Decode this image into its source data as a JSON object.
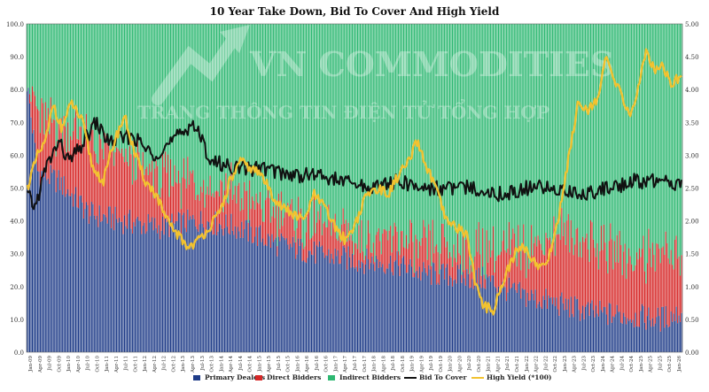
{
  "chart_data": {
    "type": "bar",
    "stacked": true,
    "title": "10 Year Take Down, Bid To Cover And High Yield",
    "left_axis": {
      "ylim": [
        0,
        100
      ],
      "ticks": [
        "0.0",
        "10.0",
        "20.0",
        "30.0",
        "40.0",
        "50.0",
        "60.0",
        "70.0",
        "80.0",
        "90.0",
        "100.0"
      ]
    },
    "right_axis": {
      "ylim": [
        0,
        5
      ],
      "ticks": [
        "0.00",
        "0.50",
        "1.00",
        "1.50",
        "2.00",
        "2.50",
        "3.00",
        "3.50",
        "4.00",
        "4.50",
        "5.00"
      ]
    },
    "x_tick_labels": [
      "Jan-09",
      "Apr-09",
      "Jul-09",
      "Oct-09",
      "Jan-10",
      "Apr-10",
      "Jul-10",
      "Oct-10",
      "Jan-11",
      "Apr-11",
      "Jul-11",
      "Oct-11",
      "Jan-12",
      "Apr-12",
      "Jul-12",
      "Oct-12",
      "Jan-13",
      "Apr-13",
      "Jul-13",
      "Oct-13",
      "Jan-14",
      "Apr-14",
      "Jul-14",
      "Oct-14",
      "Jan-15",
      "Apr-15",
      "Jul-15",
      "Oct-15",
      "Jan-16",
      "Apr-16",
      "Jul-16",
      "Oct-16",
      "Jan-17",
      "Apr-17",
      "Jul-17",
      "Oct-17",
      "Jan-18",
      "Apr-18",
      "Jul-18",
      "Oct-18",
      "Jan-19",
      "Apr-19",
      "Jul-19",
      "Oct-19",
      "Jan-20",
      "Apr-20",
      "Jul-20",
      "Oct-20",
      "Jan-21",
      "Apr-21",
      "Jul-21",
      "Oct-21",
      "Jan-22",
      "Apr-22",
      "Jul-22",
      "Oct-22",
      "Jan-23",
      "Apr-23",
      "Jul-23",
      "Oct-23",
      "Jan-24",
      "Apr-24",
      "Jul-24",
      "Oct-24",
      "Jan-25",
      "Apr-25",
      "Jul-25",
      "Oct-25",
      "Jan-26"
    ],
    "bar_series": [
      {
        "name": "Primary Dealers",
        "color": "#1f3c88",
        "keyframes": [
          [
            0,
            82
          ],
          [
            8,
            55
          ],
          [
            24,
            52
          ],
          [
            48,
            42
          ],
          [
            72,
            40
          ],
          [
            100,
            38
          ],
          [
            130,
            40
          ],
          [
            160,
            38
          ],
          [
            190,
            33
          ],
          [
            220,
            30
          ],
          [
            250,
            28
          ],
          [
            280,
            27
          ],
          [
            300,
            24
          ],
          [
            330,
            23
          ],
          [
            350,
            22
          ],
          [
            370,
            18
          ],
          [
            400,
            15
          ],
          [
            430,
            12
          ],
          [
            460,
            11
          ],
          [
            480,
            10
          ],
          [
            497,
            12
          ]
        ]
      },
      {
        "name": "Direct Bidders",
        "color": "#d62828",
        "keyframes": [
          [
            0,
            0
          ],
          [
            8,
            18
          ],
          [
            20,
            15
          ],
          [
            40,
            22
          ],
          [
            60,
            20
          ],
          [
            80,
            18
          ],
          [
            100,
            15
          ],
          [
            120,
            13
          ],
          [
            140,
            12
          ],
          [
            160,
            10
          ],
          [
            180,
            9
          ],
          [
            200,
            9
          ],
          [
            220,
            8
          ],
          [
            240,
            8
          ],
          [
            260,
            7
          ],
          [
            280,
            8
          ],
          [
            300,
            7
          ],
          [
            320,
            8
          ],
          [
            340,
            8
          ],
          [
            350,
            9
          ],
          [
            370,
            12
          ],
          [
            390,
            18
          ],
          [
            410,
            22
          ],
          [
            430,
            20
          ],
          [
            460,
            19
          ],
          [
            480,
            20
          ],
          [
            497,
            19
          ]
        ]
      },
      {
        "name": "Indirect Bidders",
        "color": "#2eb872"
      }
    ],
    "line_series": [
      {
        "name": "Bid To Cover",
        "color": "#111111",
        "axis": "right",
        "keyframes": [
          [
            0,
            2.4
          ],
          [
            6,
            2.2
          ],
          [
            14,
            2.8
          ],
          [
            24,
            3.2
          ],
          [
            32,
            2.9
          ],
          [
            40,
            3.1
          ],
          [
            52,
            3.5
          ],
          [
            62,
            3.2
          ],
          [
            80,
            3.3
          ],
          [
            95,
            3.0
          ],
          [
            110,
            3.2
          ],
          [
            126,
            3.5
          ],
          [
            140,
            2.9
          ],
          [
            160,
            2.8
          ],
          [
            180,
            2.8
          ],
          [
            200,
            2.7
          ],
          [
            220,
            2.7
          ],
          [
            240,
            2.6
          ],
          [
            260,
            2.5
          ],
          [
            280,
            2.6
          ],
          [
            300,
            2.5
          ],
          [
            320,
            2.5
          ],
          [
            340,
            2.5
          ],
          [
            360,
            2.4
          ],
          [
            380,
            2.5
          ],
          [
            400,
            2.5
          ],
          [
            420,
            2.4
          ],
          [
            440,
            2.5
          ],
          [
            460,
            2.6
          ],
          [
            480,
            2.6
          ],
          [
            497,
            2.55
          ]
        ]
      },
      {
        "name": "High Yield (*100)",
        "color": "#f2c230",
        "axis": "right",
        "keyframes": [
          [
            0,
            2.5
          ],
          [
            8,
            3.0
          ],
          [
            14,
            3.2
          ],
          [
            20,
            3.8
          ],
          [
            26,
            3.4
          ],
          [
            34,
            3.8
          ],
          [
            42,
            3.5
          ],
          [
            50,
            2.8
          ],
          [
            58,
            2.6
          ],
          [
            66,
            3.2
          ],
          [
            74,
            3.6
          ],
          [
            82,
            3.0
          ],
          [
            90,
            2.6
          ],
          [
            98,
            2.4
          ],
          [
            106,
            2.0
          ],
          [
            114,
            1.8
          ],
          [
            122,
            1.6
          ],
          [
            130,
            1.7
          ],
          [
            138,
            1.9
          ],
          [
            146,
            2.1
          ],
          [
            154,
            2.6
          ],
          [
            162,
            2.9
          ],
          [
            170,
            2.8
          ],
          [
            178,
            2.7
          ],
          [
            186,
            2.4
          ],
          [
            194,
            2.2
          ],
          [
            202,
            2.1
          ],
          [
            210,
            2.0
          ],
          [
            218,
            2.4
          ],
          [
            226,
            2.2
          ],
          [
            234,
            1.9
          ],
          [
            242,
            1.7
          ],
          [
            250,
            2.0
          ],
          [
            258,
            2.4
          ],
          [
            266,
            2.5
          ],
          [
            274,
            2.4
          ],
          [
            282,
            2.7
          ],
          [
            290,
            2.9
          ],
          [
            296,
            3.2
          ],
          [
            304,
            2.8
          ],
          [
            312,
            2.4
          ],
          [
            318,
            2.0
          ],
          [
            326,
            1.9
          ],
          [
            334,
            1.8
          ],
          [
            340,
            1.1
          ],
          [
            346,
            0.7
          ],
          [
            354,
            0.65
          ],
          [
            362,
            1.1
          ],
          [
            370,
            1.5
          ],
          [
            378,
            1.6
          ],
          [
            386,
            1.35
          ],
          [
            394,
            1.3
          ],
          [
            402,
            1.9
          ],
          [
            410,
            2.8
          ],
          [
            418,
            3.8
          ],
          [
            426,
            3.7
          ],
          [
            434,
            3.9
          ],
          [
            440,
            4.5
          ],
          [
            446,
            4.1
          ],
          [
            452,
            3.9
          ],
          [
            458,
            3.6
          ],
          [
            464,
            4.0
          ],
          [
            470,
            4.6
          ],
          [
            476,
            4.3
          ],
          [
            482,
            4.4
          ],
          [
            488,
            4.1
          ],
          [
            497,
            4.2
          ]
        ]
      }
    ],
    "legend": [
      "Primary Dealers",
      "Direct Bidders",
      "Indirect Bidders",
      "Bid To Cover",
      "High Yield (*100)"
    ],
    "legend_position": "bottom",
    "watermark": [
      "VN COMMODITIES",
      "TRANG THÔNG TIN ĐIỆN TỬ TỔNG HỢP"
    ],
    "grid": false
  }
}
